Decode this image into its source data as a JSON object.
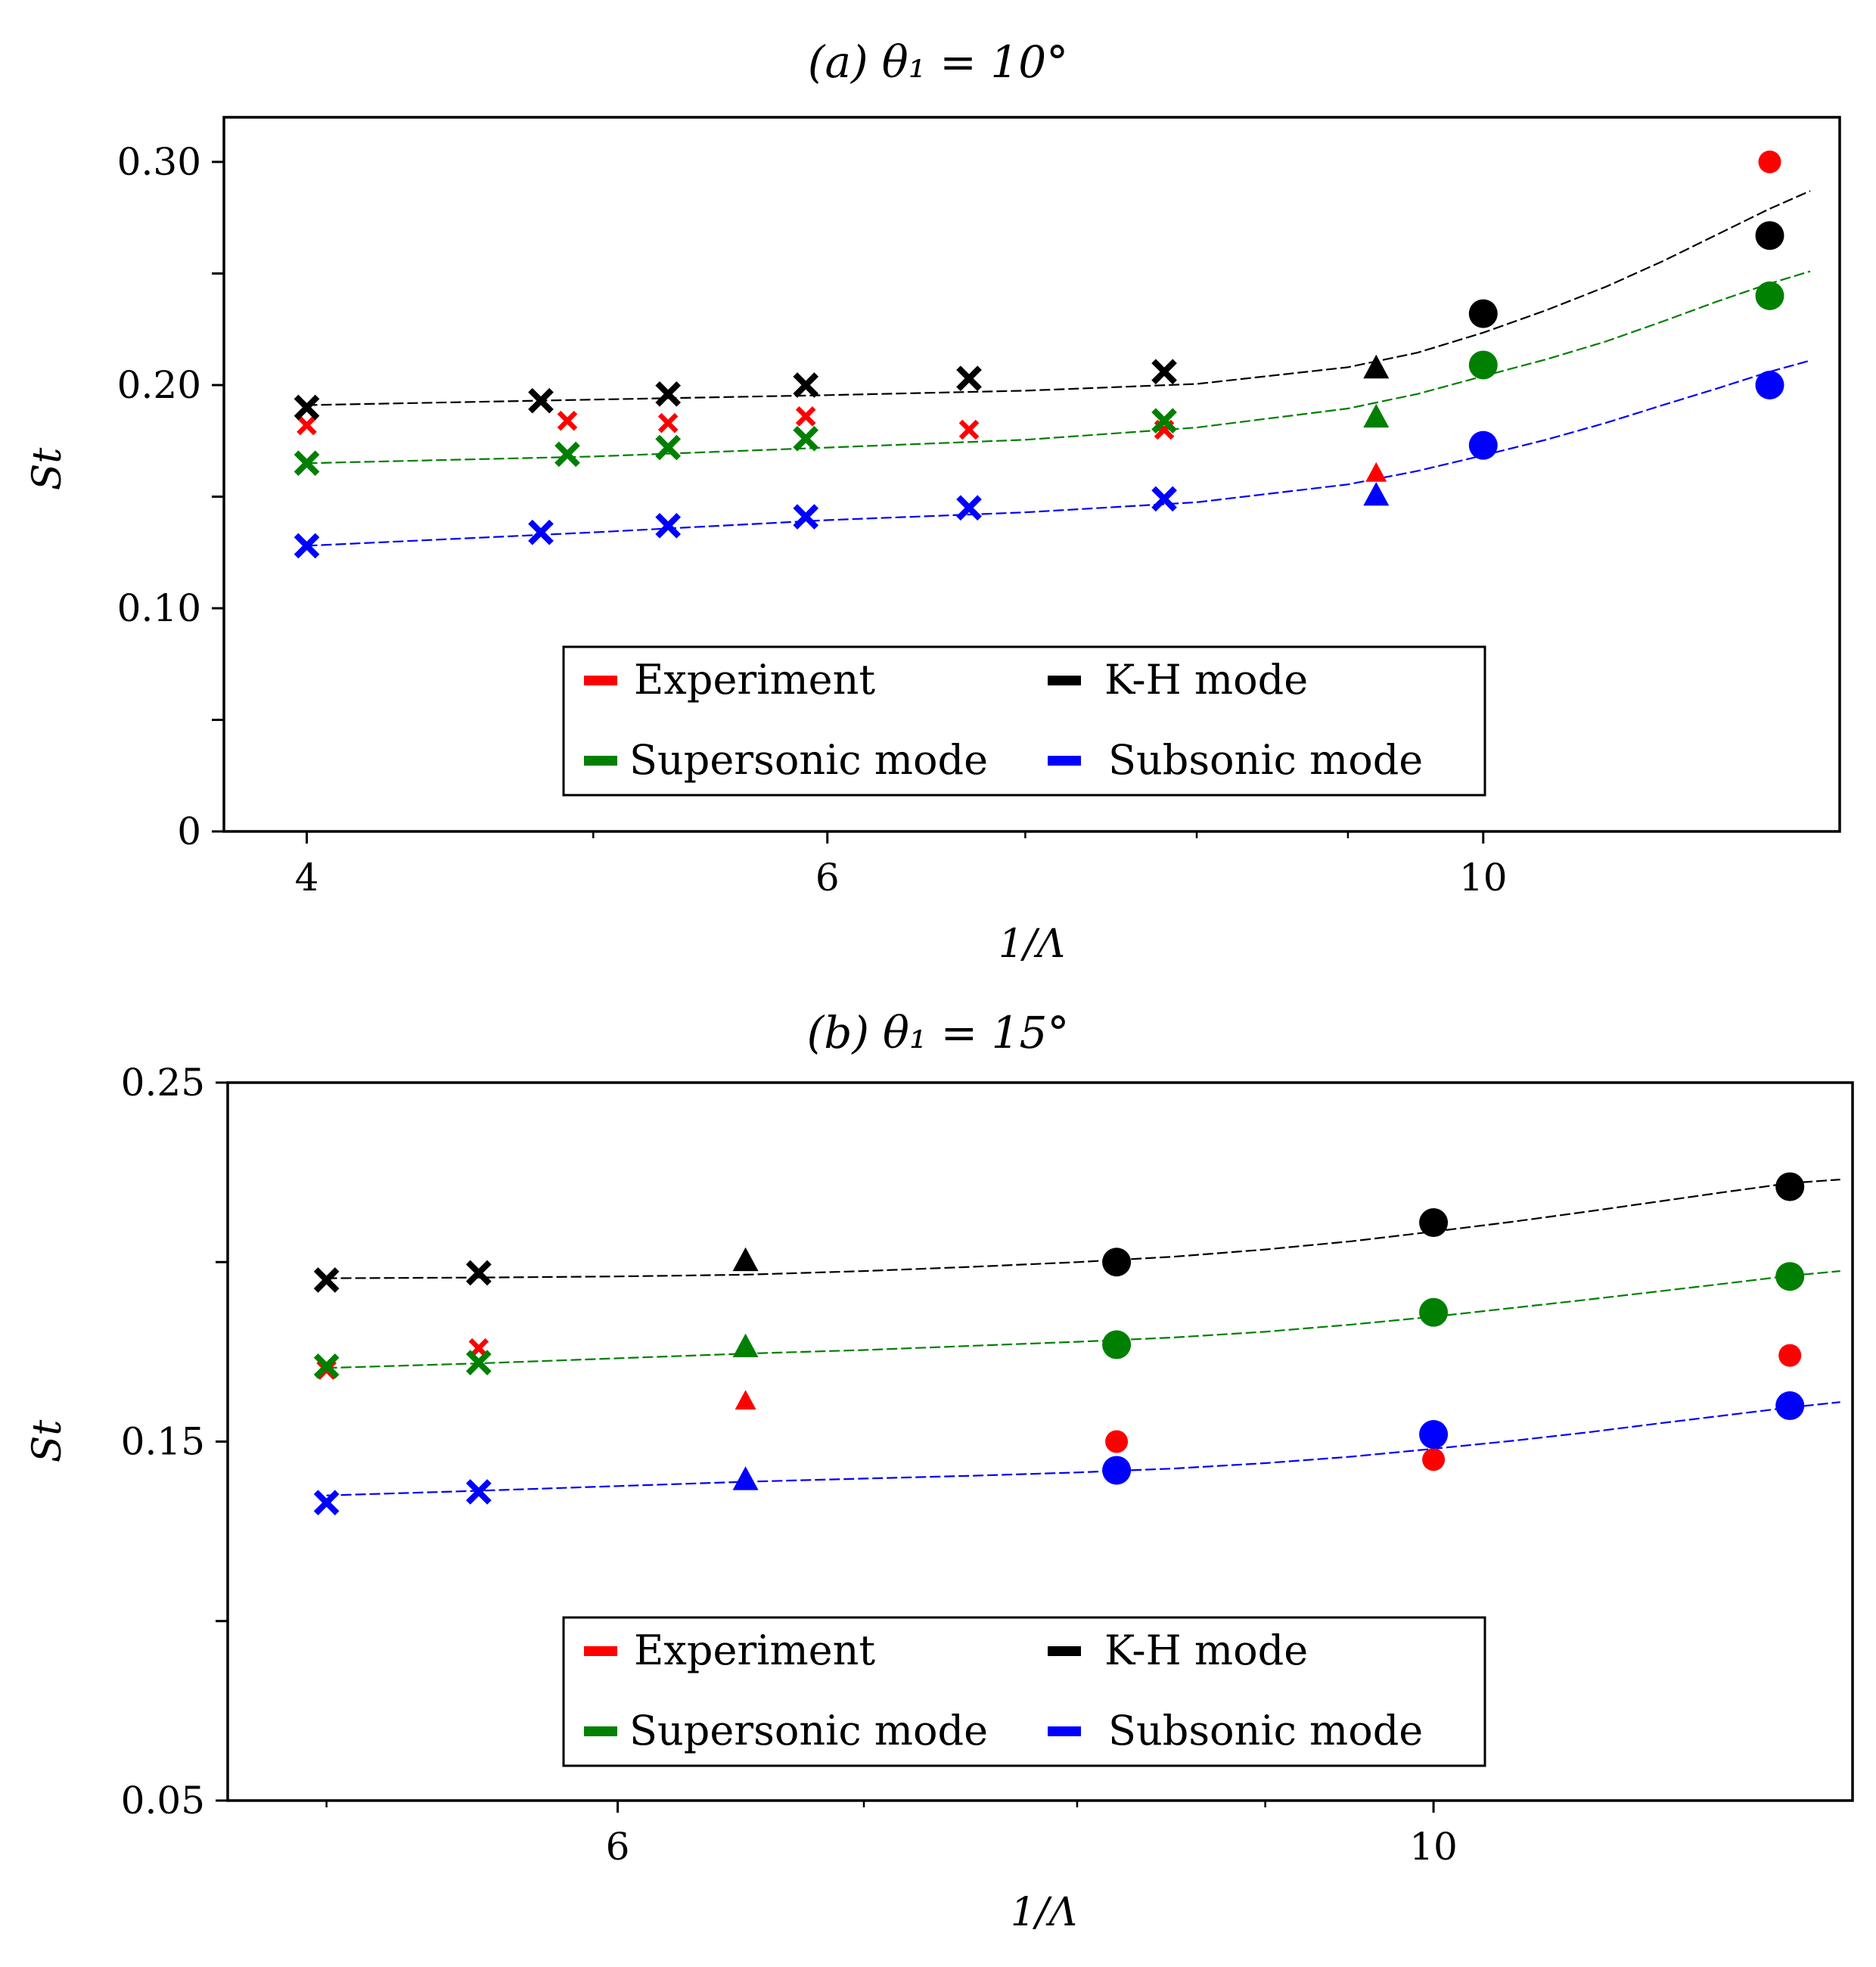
{
  "chart_data": [
    {
      "type": "scatter",
      "title": "(a) θ₁ = 10°",
      "title_prefix": "(a)",
      "title_expr": "θ₁ = 10°",
      "xlabel": "1/Λ",
      "ylabel": "St",
      "xscale": "log",
      "xlim": [
        3.75,
        13.2
      ],
      "ylim": [
        0,
        0.32
      ],
      "xticks": [
        4,
        6,
        10
      ],
      "xtick_labels": [
        "4",
        "6",
        "10"
      ],
      "xminor": [
        5,
        7,
        8,
        9
      ],
      "yticks": [
        0,
        0.05,
        0.1,
        0.15,
        0.2,
        0.25,
        0.3
      ],
      "ytick_labels": [
        "0",
        "",
        "0.10",
        "",
        "0.20",
        "",
        "0.30"
      ],
      "legend": {
        "placement": "lower center",
        "entries": [
          {
            "label": "Experiment",
            "color": "#ff0000"
          },
          {
            "label": "K-H mode",
            "color": "#000000"
          },
          {
            "label": "Supersonic mode",
            "color": "#008000"
          },
          {
            "label": "Subsonic mode",
            "color": "#0000ff"
          }
        ]
      },
      "series": [
        {
          "name": "Experiment",
          "color": "#ff0000",
          "points": [
            {
              "x": 4.0,
              "y": 0.182,
              "m": "x",
              "s": "s"
            },
            {
              "x": 4.9,
              "y": 0.184,
              "m": "x",
              "s": "s"
            },
            {
              "x": 5.3,
              "y": 0.183,
              "m": "x",
              "s": "s"
            },
            {
              "x": 5.9,
              "y": 0.186,
              "m": "x",
              "s": "s"
            },
            {
              "x": 6.7,
              "y": 0.18,
              "m": "x",
              "s": "s"
            },
            {
              "x": 7.8,
              "y": 0.18,
              "m": "x",
              "s": "s"
            },
            {
              "x": 9.2,
              "y": 0.16,
              "m": "^",
              "s": "s"
            },
            {
              "x": 10.0,
              "y": 0.208,
              "m": "o",
              "s": "s"
            },
            {
              "x": 12.5,
              "y": 0.3,
              "m": "o",
              "s": "s"
            }
          ]
        },
        {
          "name": "K-H mode",
          "color": "#000000",
          "points": [
            {
              "x": 4.0,
              "y": 0.19,
              "m": "x",
              "s": "l"
            },
            {
              "x": 4.8,
              "y": 0.193,
              "m": "x",
              "s": "l"
            },
            {
              "x": 5.3,
              "y": 0.196,
              "m": "x",
              "s": "l"
            },
            {
              "x": 5.9,
              "y": 0.2,
              "m": "x",
              "s": "l"
            },
            {
              "x": 6.7,
              "y": 0.203,
              "m": "x",
              "s": "l"
            },
            {
              "x": 7.8,
              "y": 0.206,
              "m": "x",
              "s": "l"
            },
            {
              "x": 9.2,
              "y": 0.207,
              "m": "^",
              "s": "l"
            },
            {
              "x": 10.0,
              "y": 0.232,
              "m": "o",
              "s": "l"
            },
            {
              "x": 12.5,
              "y": 0.267,
              "m": "o",
              "s": "l"
            }
          ]
        },
        {
          "name": "Supersonic mode",
          "color": "#008000",
          "points": [
            {
              "x": 4.0,
              "y": 0.165,
              "m": "x",
              "s": "l"
            },
            {
              "x": 4.9,
              "y": 0.169,
              "m": "x",
              "s": "l"
            },
            {
              "x": 5.3,
              "y": 0.172,
              "m": "x",
              "s": "l"
            },
            {
              "x": 5.9,
              "y": 0.176,
              "m": "x",
              "s": "l"
            },
            {
              "x": 7.8,
              "y": 0.184,
              "m": "x",
              "s": "l"
            },
            {
              "x": 9.2,
              "y": 0.185,
              "m": "^",
              "s": "l"
            },
            {
              "x": 10.0,
              "y": 0.209,
              "m": "o",
              "s": "l"
            },
            {
              "x": 12.5,
              "y": 0.24,
              "m": "o",
              "s": "l"
            }
          ]
        },
        {
          "name": "Subsonic mode",
          "color": "#0000ff",
          "points": [
            {
              "x": 4.0,
              "y": 0.128,
              "m": "x",
              "s": "l"
            },
            {
              "x": 4.8,
              "y": 0.134,
              "m": "x",
              "s": "l"
            },
            {
              "x": 5.3,
              "y": 0.137,
              "m": "x",
              "s": "l"
            },
            {
              "x": 5.9,
              "y": 0.141,
              "m": "x",
              "s": "l"
            },
            {
              "x": 6.7,
              "y": 0.145,
              "m": "x",
              "s": "l"
            },
            {
              "x": 7.8,
              "y": 0.149,
              "m": "x",
              "s": "l"
            },
            {
              "x": 9.2,
              "y": 0.15,
              "m": "^",
              "s": "l"
            },
            {
              "x": 10.0,
              "y": 0.173,
              "m": "o",
              "s": "l"
            },
            {
              "x": 12.5,
              "y": 0.2,
              "m": "o",
              "s": "l"
            }
          ]
        }
      ],
      "fits": [
        {
          "name": "K-H mode fit",
          "color": "#000000",
          "x": [
            4.0,
            5.0,
            6.0,
            7.0,
            8.0,
            9.0,
            9.5,
            10.0,
            10.5,
            11.0,
            11.5,
            12.0,
            12.5,
            12.9
          ],
          "y": [
            0.191,
            0.1935,
            0.1955,
            0.1975,
            0.2005,
            0.208,
            0.2145,
            0.2235,
            0.2335,
            0.244,
            0.2555,
            0.2675,
            0.279,
            0.287
          ]
        },
        {
          "name": "Supersonic mode fit",
          "color": "#008000",
          "x": [
            4.0,
            5.0,
            6.0,
            7.0,
            8.0,
            9.0,
            9.5,
            10.0,
            10.5,
            11.0,
            11.5,
            12.0,
            12.5,
            12.9
          ],
          "y": [
            0.165,
            0.168,
            0.172,
            0.1755,
            0.181,
            0.1895,
            0.196,
            0.204,
            0.2115,
            0.2195,
            0.2285,
            0.2375,
            0.2455,
            0.251
          ]
        },
        {
          "name": "Subsonic mode fit",
          "color": "#0000ff",
          "x": [
            4.0,
            5.0,
            6.0,
            7.0,
            8.0,
            9.0,
            9.5,
            10.0,
            10.5,
            11.0,
            11.5,
            12.0,
            12.5,
            12.9
          ],
          "y": [
            0.128,
            0.134,
            0.1395,
            0.143,
            0.1475,
            0.1555,
            0.1615,
            0.1685,
            0.1755,
            0.183,
            0.191,
            0.1985,
            0.206,
            0.211
          ]
        }
      ]
    },
    {
      "type": "scatter",
      "title": "(b) θ₁ = 15°",
      "title_prefix": "(b)",
      "title_expr": "θ₁ = 15°",
      "xlabel": "1/Λ",
      "ylabel": "St",
      "xscale": "log",
      "xlim": [
        4.7,
        13.0
      ],
      "ylim": [
        0.05,
        0.25
      ],
      "xticks": [
        6,
        10
      ],
      "xtick_labels": [
        "6",
        "10"
      ],
      "xminor": [
        5,
        7,
        8,
        9
      ],
      "yticks": [
        0.05,
        0.1,
        0.15,
        0.2,
        0.25
      ],
      "ytick_labels": [
        "0.05",
        "",
        "0.15",
        "",
        "0.25"
      ],
      "legend": {
        "placement": "lower center",
        "entries": [
          {
            "label": "Experiment",
            "color": "#ff0000"
          },
          {
            "label": "K-H mode",
            "color": "#000000"
          },
          {
            "label": "Supersonic mode",
            "color": "#008000"
          },
          {
            "label": "Subsonic mode",
            "color": "#0000ff"
          }
        ]
      },
      "series": [
        {
          "name": "Experiment",
          "color": "#ff0000",
          "points": [
            {
              "x": 5.0,
              "y": 0.17,
              "m": "x",
              "s": "s"
            },
            {
              "x": 5.5,
              "y": 0.176,
              "m": "x",
              "s": "s"
            },
            {
              "x": 6.5,
              "y": 0.161,
              "m": "^",
              "s": "s"
            },
            {
              "x": 8.2,
              "y": 0.15,
              "m": "o",
              "s": "s"
            },
            {
              "x": 10.0,
              "y": 0.145,
              "m": "o",
              "s": "s"
            },
            {
              "x": 12.5,
              "y": 0.174,
              "m": "o",
              "s": "s"
            }
          ]
        },
        {
          "name": "K-H mode",
          "color": "#000000",
          "points": [
            {
              "x": 5.0,
              "y": 0.195,
              "m": "x",
              "s": "l"
            },
            {
              "x": 5.5,
              "y": 0.197,
              "m": "x",
              "s": "l"
            },
            {
              "x": 6.5,
              "y": 0.2,
              "m": "^",
              "s": "l"
            },
            {
              "x": 8.2,
              "y": 0.2,
              "m": "o",
              "s": "l"
            },
            {
              "x": 10.0,
              "y": 0.211,
              "m": "o",
              "s": "l"
            },
            {
              "x": 12.5,
              "y": 0.221,
              "m": "o",
              "s": "l"
            }
          ]
        },
        {
          "name": "Supersonic mode",
          "color": "#008000",
          "points": [
            {
              "x": 5.0,
              "y": 0.171,
              "m": "x",
              "s": "l"
            },
            {
              "x": 5.5,
              "y": 0.172,
              "m": "x",
              "s": "l"
            },
            {
              "x": 6.5,
              "y": 0.176,
              "m": "^",
              "s": "l"
            },
            {
              "x": 8.2,
              "y": 0.177,
              "m": "o",
              "s": "l"
            },
            {
              "x": 10.0,
              "y": 0.186,
              "m": "o",
              "s": "l"
            },
            {
              "x": 12.5,
              "y": 0.196,
              "m": "o",
              "s": "l"
            }
          ]
        },
        {
          "name": "Subsonic mode",
          "color": "#0000ff",
          "points": [
            {
              "x": 5.0,
              "y": 0.133,
              "m": "x",
              "s": "l"
            },
            {
              "x": 5.5,
              "y": 0.136,
              "m": "x",
              "s": "l"
            },
            {
              "x": 6.5,
              "y": 0.139,
              "m": "^",
              "s": "l"
            },
            {
              "x": 8.2,
              "y": 0.142,
              "m": "o",
              "s": "l"
            },
            {
              "x": 10.0,
              "y": 0.152,
              "m": "o",
              "s": "l"
            },
            {
              "x": 12.5,
              "y": 0.16,
              "m": "o",
              "s": "l"
            }
          ]
        }
      ],
      "fits": [
        {
          "name": "K-H mode fit",
          "color": "#000000",
          "x": [
            5.0,
            5.5,
            6.0,
            6.5,
            7.0,
            7.5,
            8.0,
            8.5,
            9.0,
            9.5,
            10.0,
            10.5,
            11.0,
            11.5,
            12.0,
            12.5,
            12.9
          ],
          "y": [
            0.1955,
            0.1957,
            0.196,
            0.1965,
            0.1975,
            0.1987,
            0.2,
            0.2015,
            0.2035,
            0.2058,
            0.2085,
            0.2112,
            0.214,
            0.2168,
            0.2195,
            0.222,
            0.223
          ]
        },
        {
          "name": "Supersonic mode fit",
          "color": "#008000",
          "x": [
            5.0,
            5.5,
            6.0,
            6.5,
            7.0,
            7.5,
            8.0,
            8.5,
            9.0,
            9.5,
            10.0,
            10.5,
            11.0,
            11.5,
            12.0,
            12.5,
            12.9
          ],
          "y": [
            0.1705,
            0.1718,
            0.1732,
            0.1745,
            0.1755,
            0.1767,
            0.1778,
            0.179,
            0.1806,
            0.1826,
            0.1848,
            0.1872,
            0.1895,
            0.1918,
            0.194,
            0.1962,
            0.1975
          ]
        },
        {
          "name": "Subsonic mode fit",
          "color": "#0000ff",
          "x": [
            5.0,
            5.5,
            6.0,
            6.5,
            7.0,
            7.5,
            8.0,
            8.5,
            9.0,
            9.5,
            10.0,
            10.5,
            11.0,
            11.5,
            12.0,
            12.5,
            12.9
          ],
          "y": [
            0.135,
            0.1363,
            0.1376,
            0.1388,
            0.1397,
            0.1405,
            0.1414,
            0.1425,
            0.144,
            0.1458,
            0.148,
            0.1502,
            0.1525,
            0.155,
            0.1573,
            0.1595,
            0.161
          ]
        }
      ]
    }
  ]
}
